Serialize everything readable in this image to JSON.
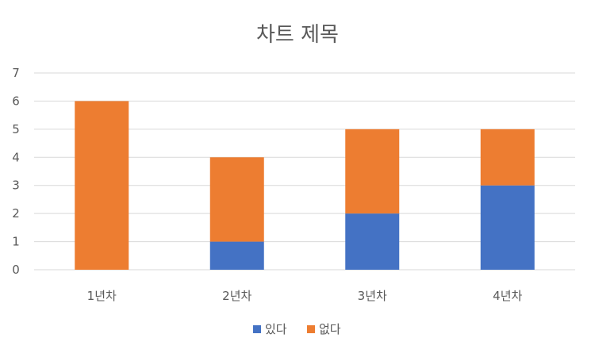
{
  "chart_data": {
    "type": "bar",
    "stacked": true,
    "title": "차트 제목",
    "categories": [
      "1년차",
      "2년차",
      "3년차",
      "4년차"
    ],
    "series": [
      {
        "name": "있다",
        "values": [
          0,
          1,
          2,
          3
        ],
        "color": "#4472c4"
      },
      {
        "name": "없다",
        "values": [
          6,
          3,
          3,
          2
        ],
        "color": "#ed7d31"
      }
    ],
    "ylim": [
      0,
      7
    ],
    "yticks": [
      0,
      1,
      2,
      3,
      4,
      5,
      6,
      7
    ],
    "grid": true,
    "legend": "bottom"
  }
}
